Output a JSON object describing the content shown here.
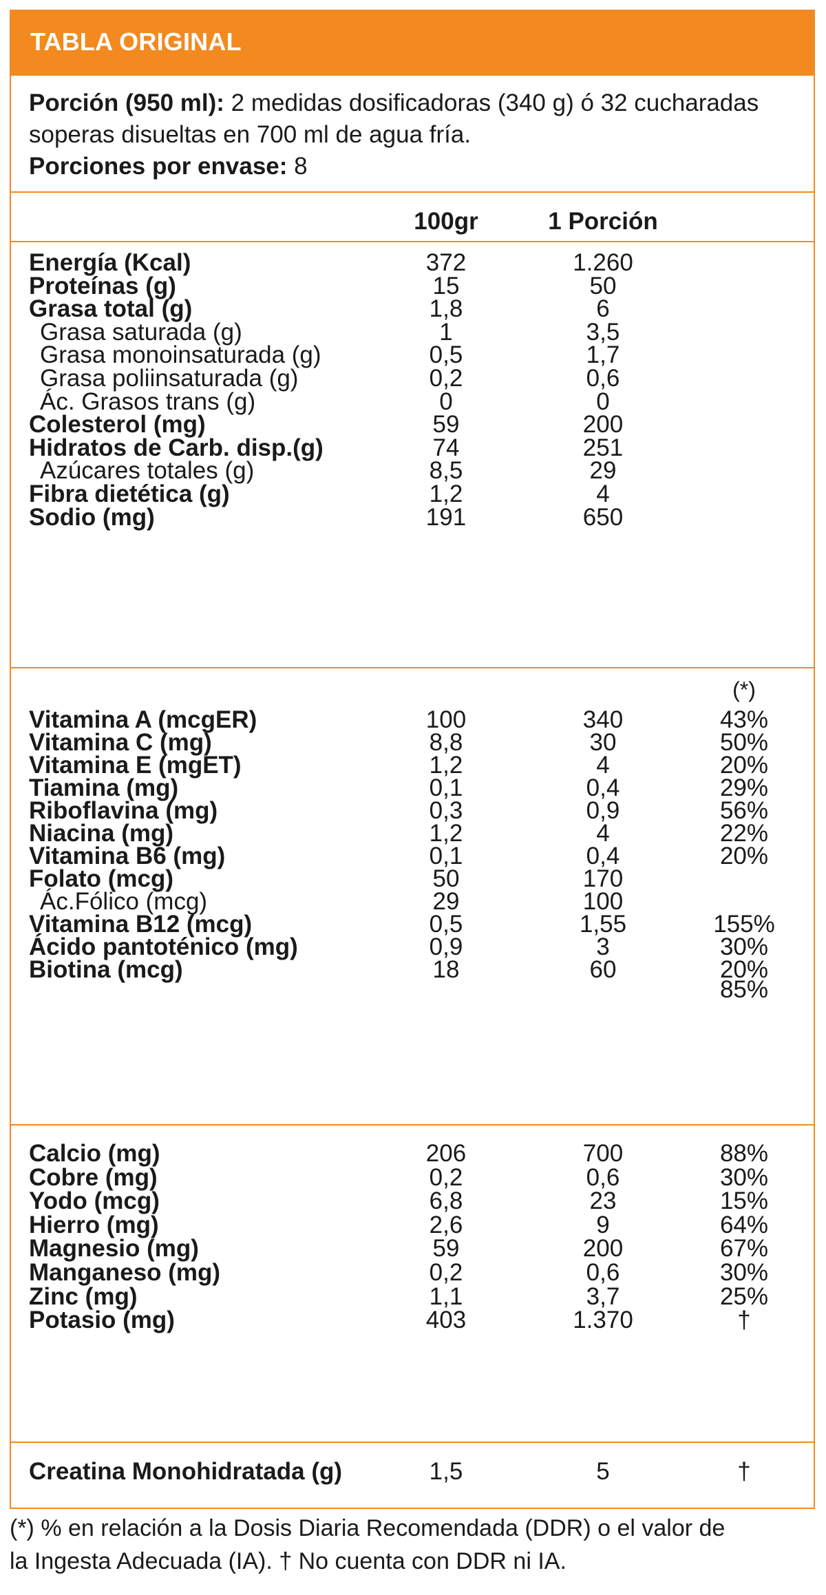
{
  "title": "TABLA ORIGINAL",
  "serving": {
    "portion_label": "Porción (950 ml):",
    "portion_text_line1": " 2 medidas dosificadoras (340 g) ó 32 cucharadas",
    "portion_text_line2": "soperas disueltas en 700 ml de agua fría.",
    "servings_label": "Porciones por envase:",
    "servings_value": " 8"
  },
  "columns": {
    "per100": "100gr",
    "per_portion": "1 Porción",
    "ddr": "(*)"
  },
  "macros": [
    {
      "label": "Energía (Kcal)",
      "per100": "372",
      "portion": "1.260",
      "bold": true
    },
    {
      "label": "Proteínas (g)",
      "per100": "15",
      "portion": "50",
      "bold": true
    },
    {
      "label": "Grasa total (g)",
      "per100": "1,8",
      "portion": "6",
      "bold": true
    },
    {
      "label": "Grasa saturada (g)",
      "per100": "1",
      "portion": "3,5",
      "bold": false
    },
    {
      "label": "Grasa monoinsaturada (g)",
      "per100": "0,5",
      "portion": "1,7",
      "bold": false
    },
    {
      "label": "Grasa poliinsaturada (g)",
      "per100": "0,2",
      "portion": "0,6",
      "bold": false
    },
    {
      "label": "Ác. Grasos trans (g)",
      "per100": "0",
      "portion": "0",
      "bold": false
    },
    {
      "label": "Colesterol (mg)",
      "per100": "59",
      "portion": "200",
      "bold": true
    },
    {
      "label": "Hidratos de Carb. disp.(g)",
      "per100": "74",
      "portion": "251",
      "bold": true
    },
    {
      "label": "Azúcares totales (g)",
      "per100": "8,5",
      "portion": "29",
      "bold": false
    },
    {
      "label": "Fibra dietética (g)",
      "per100": "1,2",
      "portion": "4",
      "bold": true
    },
    {
      "label": "Sodio (mg)",
      "per100": "191",
      "portion": "650",
      "bold": true
    }
  ],
  "vitamins": [
    {
      "label": "Vitamina A (mcgER)",
      "per100": "100",
      "portion": "340",
      "pct": "43%",
      "bold": true
    },
    {
      "label": "Vitamina C (mg)",
      "per100": "8,8",
      "portion": "30",
      "pct": "50%",
      "bold": true
    },
    {
      "label": "Vitamina E (mgET)",
      "per100": "1,2",
      "portion": "4",
      "pct": "20%",
      "bold": true
    },
    {
      "label": "Tiamina (mg)",
      "per100": "0,1",
      "portion": "0,4",
      "pct": "29%",
      "bold": true
    },
    {
      "label": "Riboflavina (mg)",
      "per100": "0,3",
      "portion": "0,9",
      "pct": "56%",
      "bold": true
    },
    {
      "label": "Niacina (mg)",
      "per100": "1,2",
      "portion": "4",
      "pct": "22%",
      "bold": true
    },
    {
      "label": "Vitamina B6 (mg)",
      "per100": "0,1",
      "portion": "0,4",
      "pct": "20%",
      "bold": true
    },
    {
      "label": "Folato (mcg)",
      "per100": "50",
      "portion": "170",
      "pct": "",
      "bold": true
    },
    {
      "label": "Ác.Fólico (mcg)",
      "per100": "29",
      "portion": "100",
      "pct": "",
      "bold": false
    },
    {
      "label": "Vitamina B12 (mcg)",
      "per100": "0,5",
      "portion": "1,55",
      "pct": "155%",
      "bold": true
    },
    {
      "label": "Ácido pantoténico (mg)",
      "per100": "0,9",
      "portion": "3",
      "pct": "30%",
      "bold": true
    },
    {
      "label": "Biotina (mcg)",
      "per100": "18",
      "portion": "60",
      "pct": "20%",
      "bold": true
    }
  ],
  "folate_pct": "85%",
  "minerals": [
    {
      "label": "Calcio (mg)",
      "per100": "206",
      "portion": "700",
      "pct": "88%",
      "bold": true
    },
    {
      "label": "Cobre (mg)",
      "per100": "0,2",
      "portion": "0,6",
      "pct": "30%",
      "bold": true
    },
    {
      "label": "Yodo (mcg)",
      "per100": "6,8",
      "portion": "23",
      "pct": "15%",
      "bold": true
    },
    {
      "label": "Hierro (mg)",
      "per100": "2,6",
      "portion": "9",
      "pct": "64%",
      "bold": true
    },
    {
      "label": "Magnesio (mg)",
      "per100": "59",
      "portion": "200",
      "pct": "67%",
      "bold": true
    },
    {
      "label": "Manganeso (mg)",
      "per100": "0,2",
      "portion": "0,6",
      "pct": "30%",
      "bold": true
    },
    {
      "label": "Zinc (mg)",
      "per100": "1,1",
      "portion": "3,7",
      "pct": "25%",
      "bold": true
    },
    {
      "label": "Potasio (mg)",
      "per100": "403",
      "portion": "1.370",
      "pct": "†",
      "bold": true
    }
  ],
  "creatine": {
    "label": "Creatina Monohidratada (g)",
    "per100": "1,5",
    "portion": "5",
    "pct": "†"
  },
  "footnote": {
    "line1": "(*) % en relación a la Dosis Diaria Recomendada (DDR) o el valor de",
    "line2": "la Ingesta Adecuada (IA). † No cuenta con DDR ni IA."
  }
}
